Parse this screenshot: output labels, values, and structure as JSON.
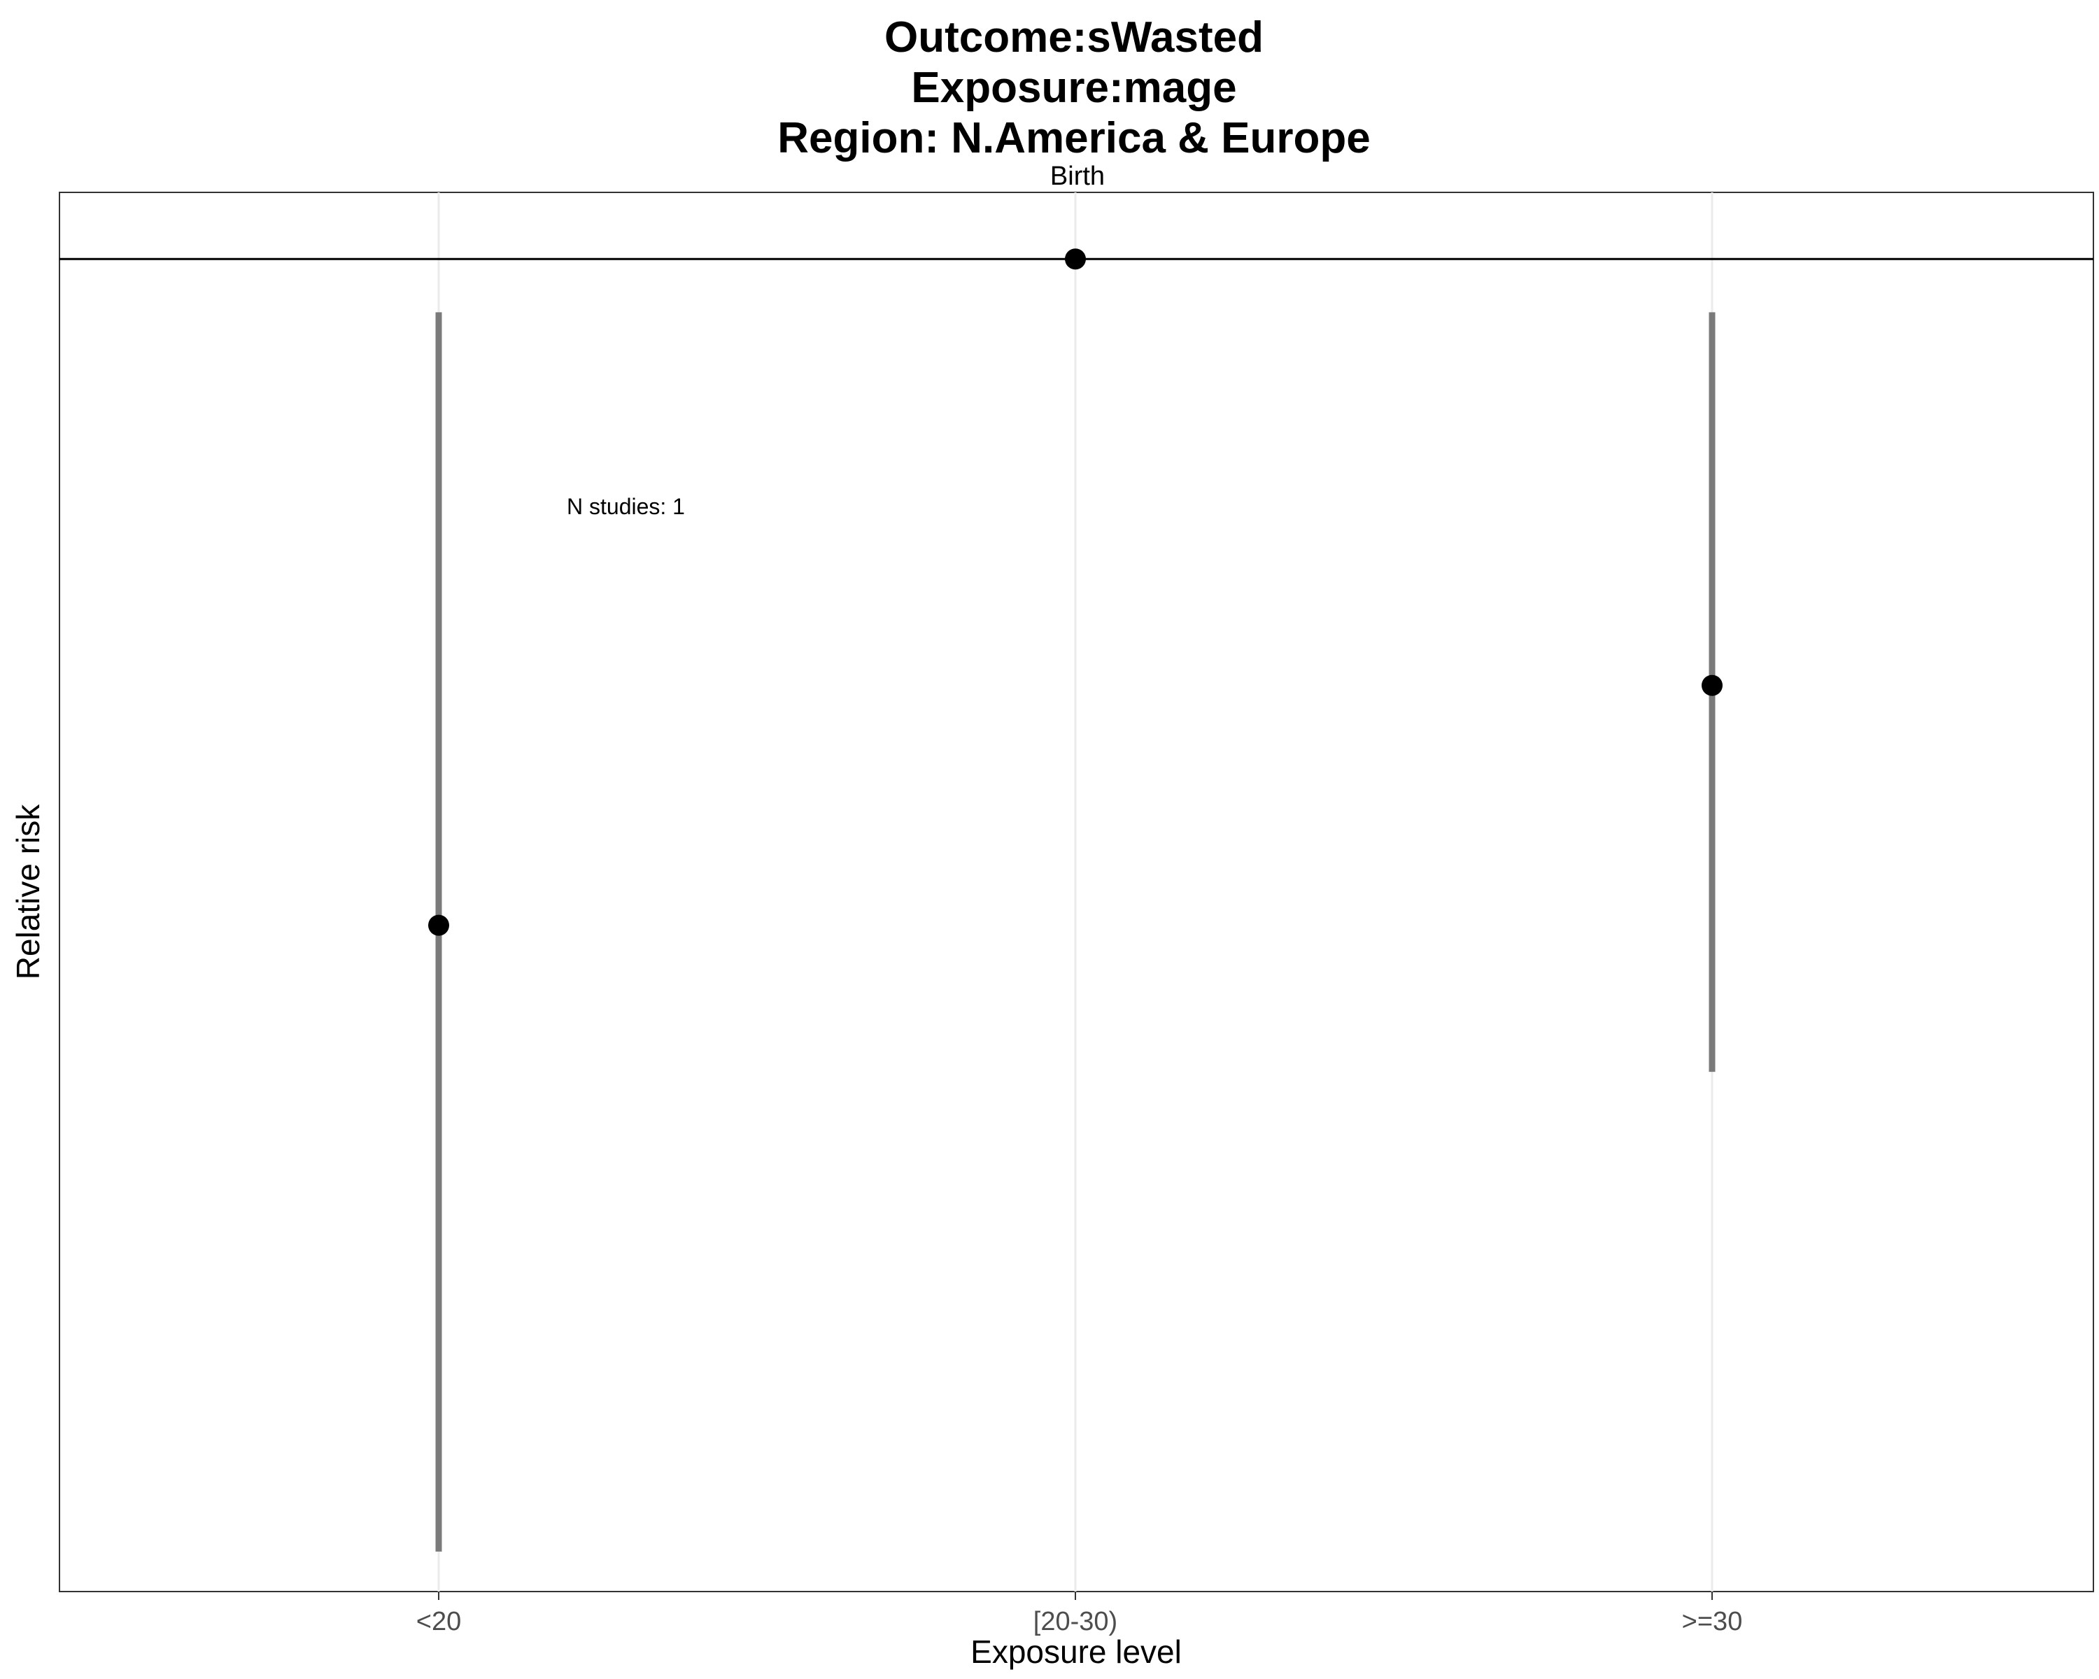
{
  "chart_data": {
    "type": "scatter",
    "title_lines": [
      "Outcome:sWasted",
      "Exposure:mage",
      "Region: N.America & Europe"
    ],
    "facet_label": "Birth",
    "xlabel": "Exposure level",
    "ylabel": "Relative risk",
    "categories": [
      "<20",
      "[20-30)",
      ">=30"
    ],
    "points": [
      {
        "category": "<20",
        "estimate": 0.5,
        "ci_lower": 0.03,
        "ci_upper": 0.96
      },
      {
        "category": "[20-30)",
        "estimate": 1.0,
        "ci_lower": null,
        "ci_upper": null
      },
      {
        "category": ">=30",
        "estimate": 0.68,
        "ci_lower": 0.39,
        "ci_upper": 0.96
      }
    ],
    "reference_line": 1.0,
    "ylim": [
      0.0,
      1.05
    ],
    "annotation": "N studies: 1",
    "grid": true,
    "colors": {
      "ci": "#7a7a7a",
      "point": "#000000",
      "grid": "#ebebeb",
      "border": "#333333"
    }
  }
}
